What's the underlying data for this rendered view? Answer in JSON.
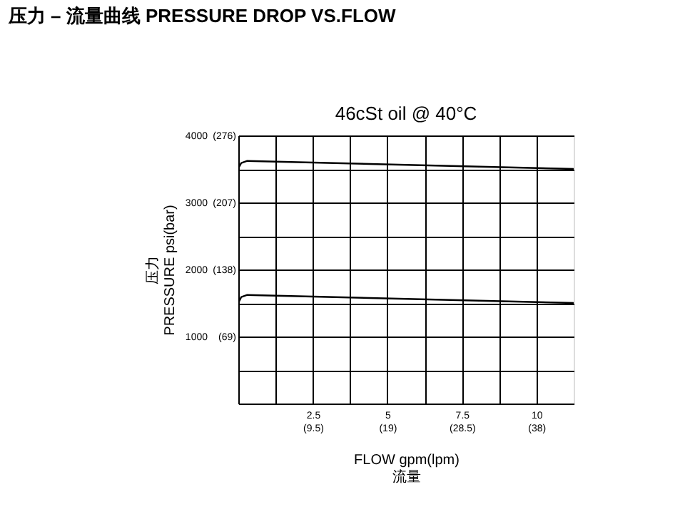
{
  "chart_data": {
    "type": "line",
    "title": "压力 – 流量曲线 PRESSURE DROP VS.FLOW",
    "subtitle": "46cSt oil @ 40°C",
    "xlabel": "FLOW gpm(lpm)\n流量",
    "ylabel": "压力\nPRESSURE   psi(bar)",
    "series": [
      {
        "color": "#000000",
        "x": [
          0,
          0.1,
          0.3,
          11.25
        ],
        "values": [
          3510,
          3590,
          3620,
          3500
        ]
      },
      {
        "color": "#000000",
        "x": [
          0,
          0.1,
          0.3,
          11.25
        ],
        "values": [
          1500,
          1590,
          1620,
          1500
        ]
      }
    ],
    "xlim": [
      0,
      11.25
    ],
    "ylim": [
      0,
      4000
    ],
    "xticks": [
      {
        "value": 1.25,
        "label": null
      },
      2.5,
      {
        "value": 3.75,
        "label": null
      },
      5,
      {
        "value": 6.25,
        "label": null
      },
      7.5,
      {
        "value": 8.75,
        "label": null
      },
      10
    ],
    "yticks": [
      {
        "value": 500,
        "label": null
      },
      1000,
      {
        "value": 1500,
        "label": null
      },
      2000,
      {
        "value": 2500,
        "label": null
      },
      3000,
      {
        "value": 3500,
        "label": null
      },
      4000
    ],
    "x2lim": [
      0,
      42.75
    ],
    "x2ticks": [
      {
        "value": 9.5,
        "label": "(9.5)"
      },
      {
        "value": 19,
        "label": "(19)"
      },
      {
        "value": 28.5,
        "label": "(28.5)"
      },
      {
        "value": 38,
        "label": "(38)"
      }
    ],
    "y2lim": [
      0,
      276
    ],
    "y2ticks": [
      {
        "value": 69,
        "label": "(69)"
      },
      {
        "value": 138,
        "label": "(138)"
      },
      {
        "value": 207,
        "label": "(207)"
      },
      {
        "value": 276,
        "label": "(276)"
      }
    ],
    "grid": true,
    "legend": false,
    "marker": "none",
    "line_style": "solid"
  }
}
